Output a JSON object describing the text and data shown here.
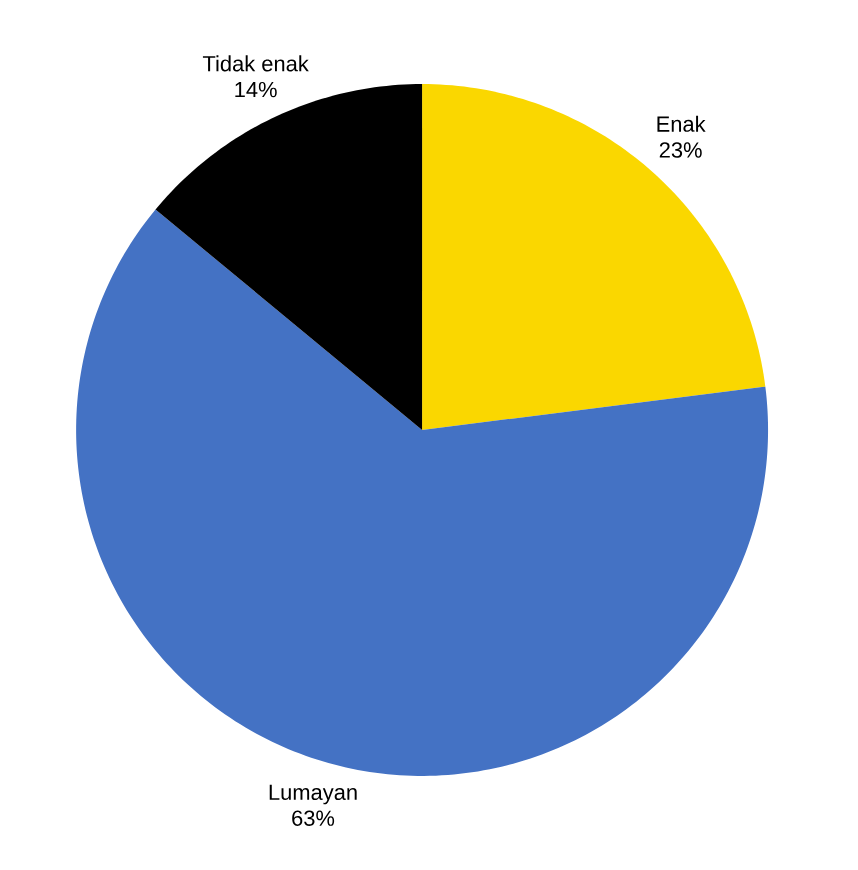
{
  "chart_data": {
    "type": "pie",
    "categories": [
      "Enak",
      "Lumayan",
      "Tidak enak"
    ],
    "values": [
      23,
      63,
      14
    ],
    "value_labels": [
      "23%",
      "63%",
      "14%"
    ],
    "colors": [
      "#fad700",
      "#4472c4",
      "#000000"
    ]
  }
}
